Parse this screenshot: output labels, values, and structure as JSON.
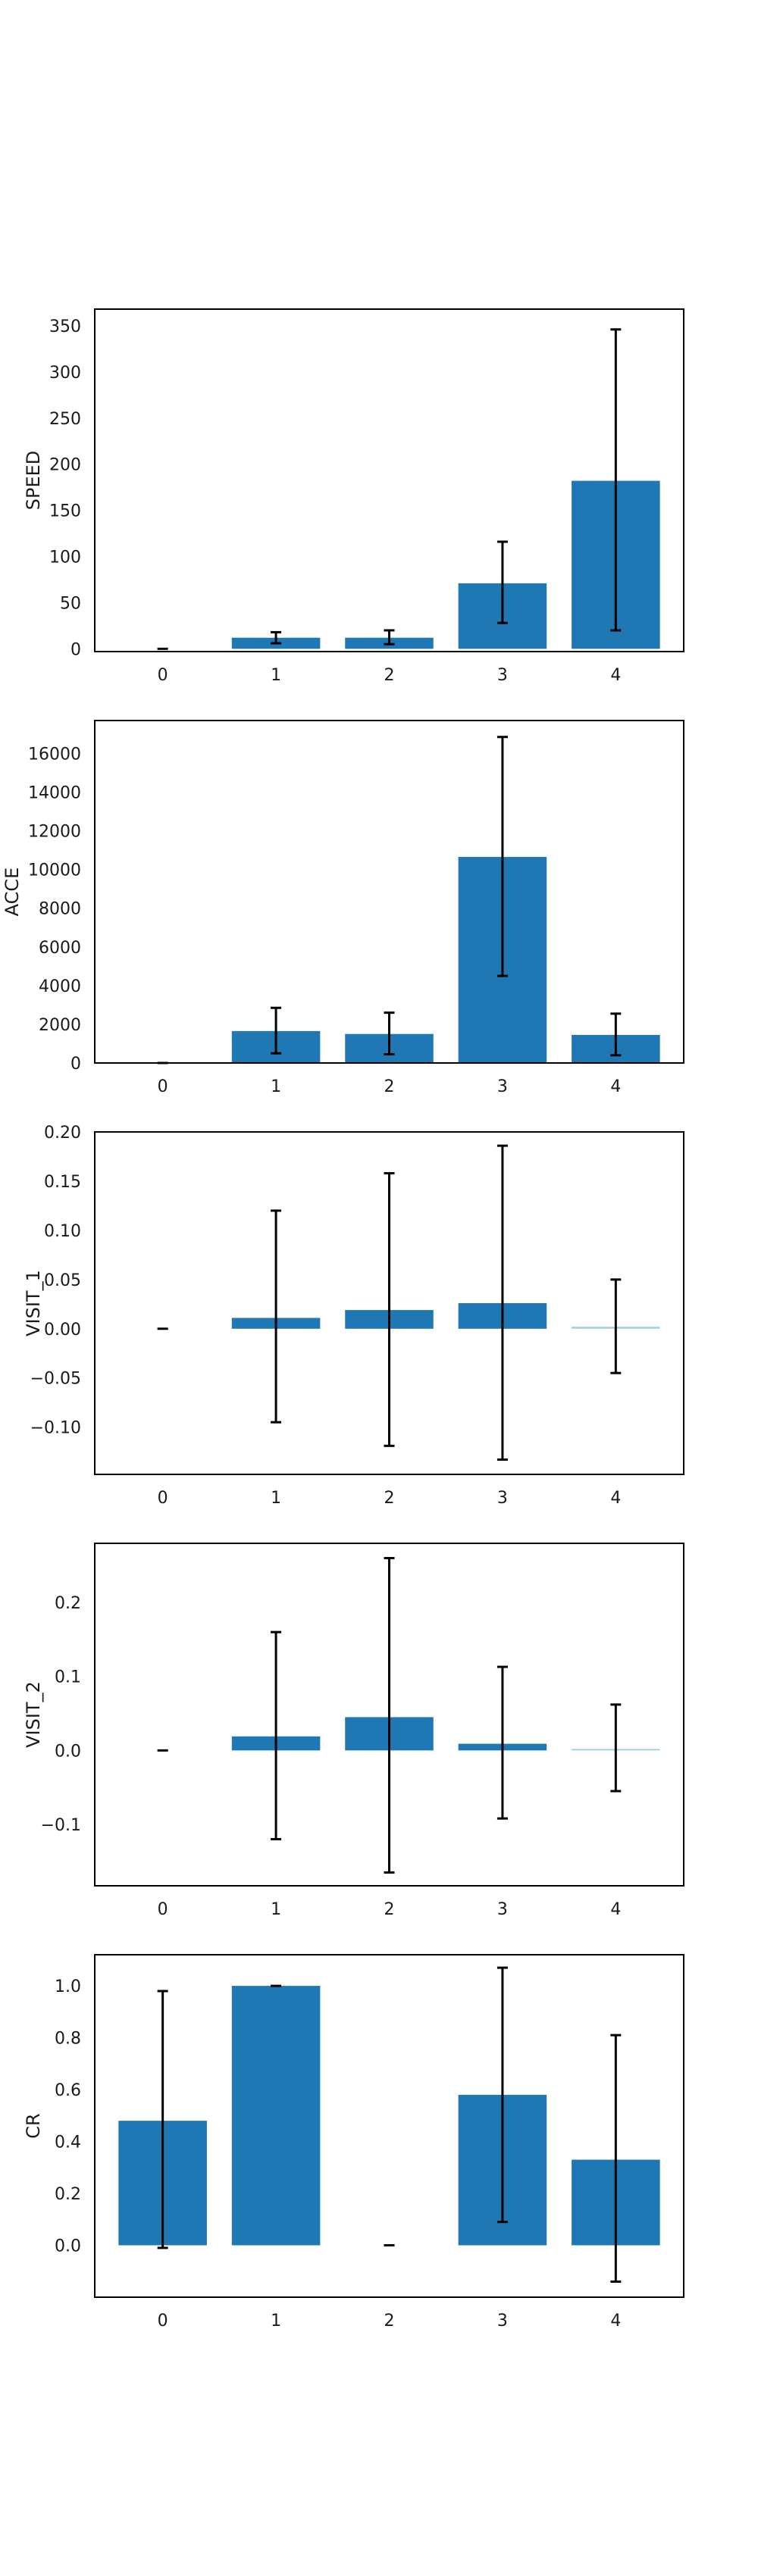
{
  "chart_data": [
    {
      "type": "bar",
      "ylabel": "SPEED",
      "categories": [
        "0",
        "1",
        "2",
        "3",
        "4"
      ],
      "values": [
        0,
        12,
        12,
        71,
        182
      ],
      "error_low": [
        0,
        6,
        5,
        28,
        20
      ],
      "error_high": [
        0,
        18,
        20,
        116,
        346
      ],
      "colors": [
        "#1f77b4",
        "#1f77b4",
        "#1f77b4",
        "#1f77b4",
        "#1f77b4"
      ],
      "ylim": [
        -3,
        368
      ],
      "yticks": [
        0,
        50,
        100,
        150,
        200,
        250,
        300,
        350
      ],
      "ytick_labels": [
        "0",
        "50",
        "100",
        "150",
        "200",
        "250",
        "300",
        "350"
      ]
    },
    {
      "type": "bar",
      "ylabel": "ACCE",
      "categories": [
        "0",
        "1",
        "2",
        "3",
        "4"
      ],
      "values": [
        0,
        1650,
        1500,
        10650,
        1450
      ],
      "error_low": [
        0,
        500,
        450,
        4500,
        400
      ],
      "error_high": [
        0,
        2850,
        2600,
        16850,
        2550
      ],
      "colors": [
        "#1f77b4",
        "#1f77b4",
        "#1f77b4",
        "#1f77b4",
        "#1f77b4"
      ],
      "ylim": [
        0,
        17700
      ],
      "yticks": [
        0,
        2000,
        4000,
        6000,
        8000,
        10000,
        12000,
        14000,
        16000
      ],
      "ytick_labels": [
        "0",
        "2000",
        "4000",
        "6000",
        "8000",
        "10000",
        "12000",
        "14000",
        "16000"
      ]
    },
    {
      "type": "bar",
      "ylabel": "VISIT_1",
      "categories": [
        "0",
        "1",
        "2",
        "3",
        "4"
      ],
      "values": [
        0,
        0.011,
        0.019,
        0.026,
        0.002
      ],
      "error_low": [
        0,
        -0.095,
        -0.119,
        -0.133,
        -0.045
      ],
      "error_high": [
        0,
        0.12,
        0.158,
        0.186,
        0.05
      ],
      "colors": [
        "#1f77b4",
        "#1f77b4",
        "#1f77b4",
        "#1f77b4",
        "#a6cee3"
      ],
      "ylim": [
        -0.148,
        0.2
      ],
      "yticks": [
        -0.1,
        -0.05,
        0.0,
        0.05,
        0.1,
        0.15,
        0.2
      ],
      "ytick_labels": [
        "−0.10",
        "−0.05",
        "0.00",
        "0.05",
        "0.10",
        "0.15",
        "0.20"
      ]
    },
    {
      "type": "bar",
      "ylabel": "VISIT_2",
      "categories": [
        "0",
        "1",
        "2",
        "3",
        "4"
      ],
      "values": [
        0,
        0.019,
        0.045,
        0.009,
        0.002
      ],
      "error_low": [
        0,
        -0.12,
        -0.165,
        -0.092,
        -0.055
      ],
      "error_high": [
        0,
        0.16,
        0.26,
        0.113,
        0.062
      ],
      "colors": [
        "#1f77b4",
        "#1f77b4",
        "#1f77b4",
        "#1f77b4",
        "#a6cee3"
      ],
      "ylim": [
        -0.183,
        0.28
      ],
      "yticks": [
        -0.1,
        0.0,
        0.1,
        0.2
      ],
      "ytick_labels": [
        "−0.1",
        "0.0",
        "0.1",
        "0.2"
      ]
    },
    {
      "type": "bar",
      "ylabel": "CR",
      "categories": [
        "0",
        "1",
        "2",
        "3",
        "4"
      ],
      "values": [
        0.48,
        1.0,
        0,
        0.58,
        0.33
      ],
      "error_low": [
        -0.01,
        1.0,
        0,
        0.09,
        -0.14
      ],
      "error_high": [
        0.98,
        1.0,
        0,
        1.07,
        0.81
      ],
      "colors": [
        "#1f77b4",
        "#1f77b4",
        "#1f77b4",
        "#1f77b4",
        "#1f77b4"
      ],
      "ylim": [
        -0.2,
        1.12
      ],
      "yticks": [
        0.0,
        0.2,
        0.4,
        0.6,
        0.8,
        1.0
      ],
      "ytick_labels": [
        "0.0",
        "0.2",
        "0.4",
        "0.6",
        "0.8",
        "1.0"
      ]
    }
  ]
}
